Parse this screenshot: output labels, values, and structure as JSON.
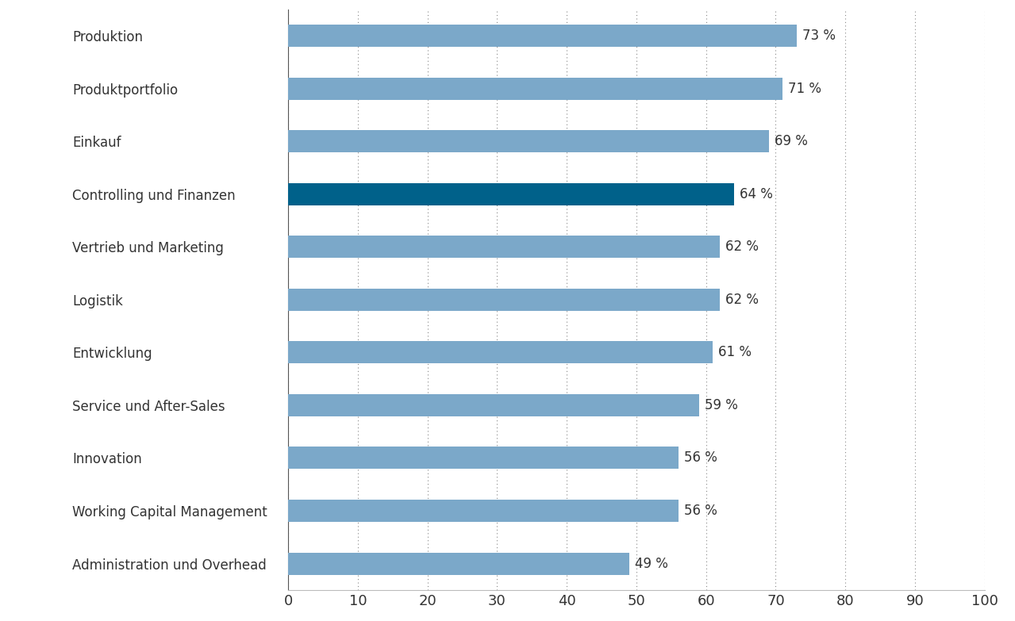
{
  "chart_data": {
    "type": "bar",
    "orientation": "horizontal",
    "categories": [
      "Produktion",
      "Produktportfolio",
      "Einkauf",
      "Controlling und Finanzen",
      "Vertrieb und Marketing",
      "Logistik",
      "Entwicklung",
      "Service und After-Sales",
      "Innovation",
      "Working Capital Management",
      "Administration und Overhead"
    ],
    "values": [
      73,
      71,
      69,
      64,
      62,
      62,
      61,
      59,
      56,
      56,
      49
    ],
    "value_labels": [
      "73 %",
      "71 %",
      "69 %",
      "64 %",
      "62 %",
      "62 %",
      "61 %",
      "59 %",
      "56 %",
      "56 %",
      "49 %"
    ],
    "colors": [
      "#7ba8c9",
      "#7ba8c9",
      "#7ba8c9",
      "#00618a",
      "#7ba8c9",
      "#7ba8c9",
      "#7ba8c9",
      "#7ba8c9",
      "#7ba8c9",
      "#7ba8c9",
      "#7ba8c9"
    ],
    "xlim": [
      0,
      100
    ],
    "xticks": [
      0,
      10,
      20,
      30,
      40,
      50,
      60,
      70,
      80,
      90,
      100
    ],
    "grid": true,
    "data_labels": true
  }
}
